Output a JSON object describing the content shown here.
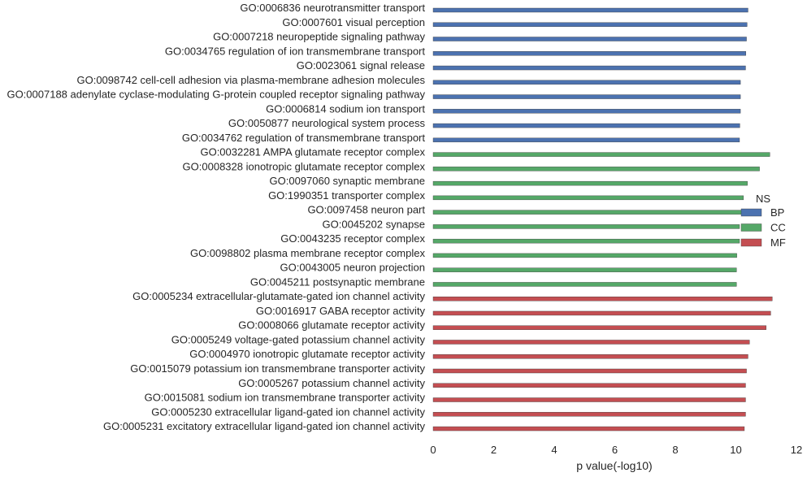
{
  "chart_data": {
    "type": "bar",
    "orientation": "horizontal",
    "title": "",
    "xlabel": "p value(-log10)",
    "ylabel": "",
    "xlim": [
      0,
      12
    ],
    "xticks": [
      "0",
      "2",
      "4",
      "6",
      "8",
      "10",
      "12"
    ],
    "grid": false,
    "legend": {
      "title": "NS",
      "placement": "right",
      "entries": [
        {
          "name": "BP",
          "color": "#4c72b0"
        },
        {
          "name": "CC",
          "color": "#55a868"
        },
        {
          "name": "MF",
          "color": "#c44e52"
        }
      ]
    },
    "categories": [
      "GO:0006836 neurotransmitter transport",
      "GO:0007601 visual perception",
      "GO:0007218 neuropeptide signaling pathway",
      "GO:0034765 regulation of ion transmembrane transport",
      "GO:0023061 signal release",
      "GO:0098742 cell-cell adhesion via plasma-membrane adhesion molecules",
      "GO:0007188 adenylate cyclase-modulating G-protein coupled receptor signaling pathway",
      "GO:0006814 sodium ion transport",
      "GO:0050877 neurological system process",
      "GO:0034762 regulation of transmembrane transport",
      "GO:0032281 AMPA glutamate receptor complex",
      "GO:0008328 ionotropic glutamate receptor complex",
      "GO:0097060 synaptic membrane",
      "GO:1990351 transporter complex",
      "GO:0097458 neuron part",
      "GO:0045202 synapse",
      "GO:0043235 receptor complex",
      "GO:0098802 plasma membrane receptor complex",
      "GO:0043005 neuron projection",
      "GO:0045211 postsynaptic membrane",
      "GO:0005234 extracellular-glutamate-gated ion channel activity",
      "GO:0016917 GABA receptor activity",
      "GO:0008066 glutamate receptor activity",
      "GO:0005249 voltage-gated potassium channel activity",
      "GO:0004970 ionotropic glutamate receptor activity",
      "GO:0015079 potassium ion transmembrane transporter activity",
      "GO:0005267 potassium channel activity",
      "GO:0015081 sodium ion transmembrane transporter activity",
      "GO:0005230 extracellular ligand-gated ion channel activity",
      "GO:0005231 excitatory extracellular ligand-gated ion channel activity"
    ],
    "groups": [
      "BP",
      "BP",
      "BP",
      "BP",
      "BP",
      "BP",
      "BP",
      "BP",
      "BP",
      "BP",
      "CC",
      "CC",
      "CC",
      "CC",
      "CC",
      "CC",
      "CC",
      "CC",
      "CC",
      "CC",
      "MF",
      "MF",
      "MF",
      "MF",
      "MF",
      "MF",
      "MF",
      "MF",
      "MF",
      "MF"
    ],
    "values": [
      10.4,
      10.37,
      10.35,
      10.33,
      10.32,
      10.15,
      10.15,
      10.15,
      10.13,
      10.12,
      11.12,
      10.78,
      10.38,
      10.25,
      10.18,
      10.12,
      10.12,
      10.03,
      10.02,
      10.02,
      11.2,
      11.15,
      11.0,
      10.45,
      10.4,
      10.35,
      10.32,
      10.32,
      10.32,
      10.28
    ]
  }
}
